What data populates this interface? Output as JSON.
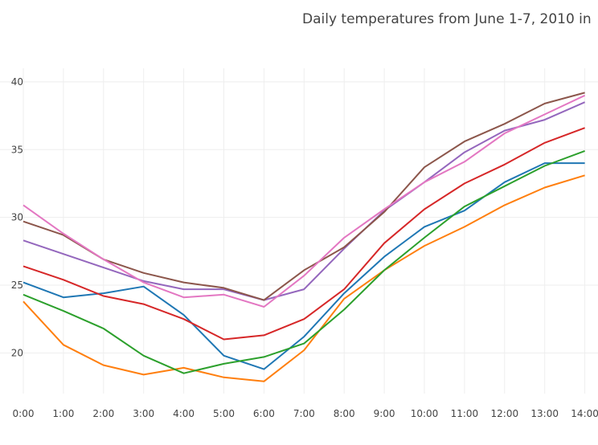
{
  "chart_data": {
    "type": "line",
    "title": "Daily temperatures from June 1-7, 2010 in",
    "x": [
      "0:00",
      "1:00",
      "2:00",
      "3:00",
      "4:00",
      "5:00",
      "6:00",
      "7:00",
      "8:00",
      "9:00",
      "10:00",
      "11:00",
      "12:00",
      "13:00",
      "14:00"
    ],
    "ylim": [
      17,
      41
    ],
    "yticks": [
      20,
      25,
      30,
      35,
      40
    ],
    "grid": true,
    "xlabel": "",
    "ylabel": "",
    "series": [
      {
        "color": "#1f77b4",
        "values": [
          25.2,
          24.1,
          24.4,
          24.9,
          22.8,
          19.8,
          18.8,
          21.2,
          24.4,
          27.1,
          29.3,
          30.5,
          32.6,
          34.0,
          34.0
        ]
      },
      {
        "color": "#ff7f0e",
        "values": [
          23.8,
          20.6,
          19.1,
          18.4,
          18.9,
          18.2,
          17.9,
          20.2,
          24.0,
          26.1,
          27.9,
          29.3,
          30.9,
          32.2,
          33.1
        ]
      },
      {
        "color": "#2ca02c",
        "values": [
          24.3,
          23.1,
          21.8,
          19.8,
          18.5,
          19.2,
          19.7,
          20.7,
          23.2,
          26.1,
          28.5,
          30.8,
          32.3,
          33.8,
          34.9
        ]
      },
      {
        "color": "#d62728",
        "values": [
          26.4,
          25.4,
          24.2,
          23.6,
          22.5,
          21.0,
          21.3,
          22.5,
          24.7,
          28.1,
          30.6,
          32.5,
          33.9,
          35.5,
          36.6
        ]
      },
      {
        "color": "#9467bd",
        "values": [
          28.3,
          27.3,
          26.3,
          25.3,
          24.7,
          24.7,
          23.9,
          24.7,
          27.7,
          30.5,
          32.6,
          34.8,
          36.4,
          37.2,
          38.5
        ]
      },
      {
        "color": "#8c564b",
        "values": [
          29.7,
          28.7,
          26.9,
          25.9,
          25.2,
          24.8,
          23.9,
          26.1,
          27.8,
          30.4,
          33.7,
          35.6,
          36.9,
          38.4,
          39.2
        ]
      },
      {
        "color": "#e377c2",
        "values": [
          30.9,
          28.8,
          26.9,
          25.2,
          24.1,
          24.3,
          23.4,
          25.7,
          28.5,
          30.6,
          32.6,
          34.1,
          36.2,
          37.6,
          39.0
        ]
      }
    ]
  }
}
